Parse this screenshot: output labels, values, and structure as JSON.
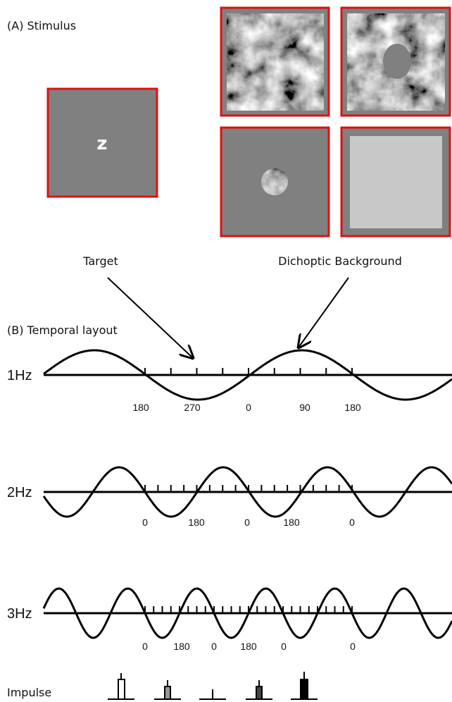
{
  "panel_a": {
    "label": "(A) Stimulus",
    "fixation_letter": "z"
  },
  "annotations": {
    "target": "Target",
    "dichoptic_background": "Dichoptic Background"
  },
  "panel_b": {
    "label": "(B) Temporal layout",
    "rows": [
      {
        "label": "1Hz",
        "phase_labels": [
          "180",
          "270",
          "0",
          "90",
          "180"
        ]
      },
      {
        "label": "2Hz",
        "phase_labels": [
          "0",
          "180",
          "0",
          "180",
          "0"
        ]
      },
      {
        "label": "3Hz",
        "phase_labels": [
          "0",
          "180",
          "0",
          "180",
          "0",
          "0"
        ]
      }
    ]
  },
  "impulse": {
    "label": "Impulse"
  }
}
